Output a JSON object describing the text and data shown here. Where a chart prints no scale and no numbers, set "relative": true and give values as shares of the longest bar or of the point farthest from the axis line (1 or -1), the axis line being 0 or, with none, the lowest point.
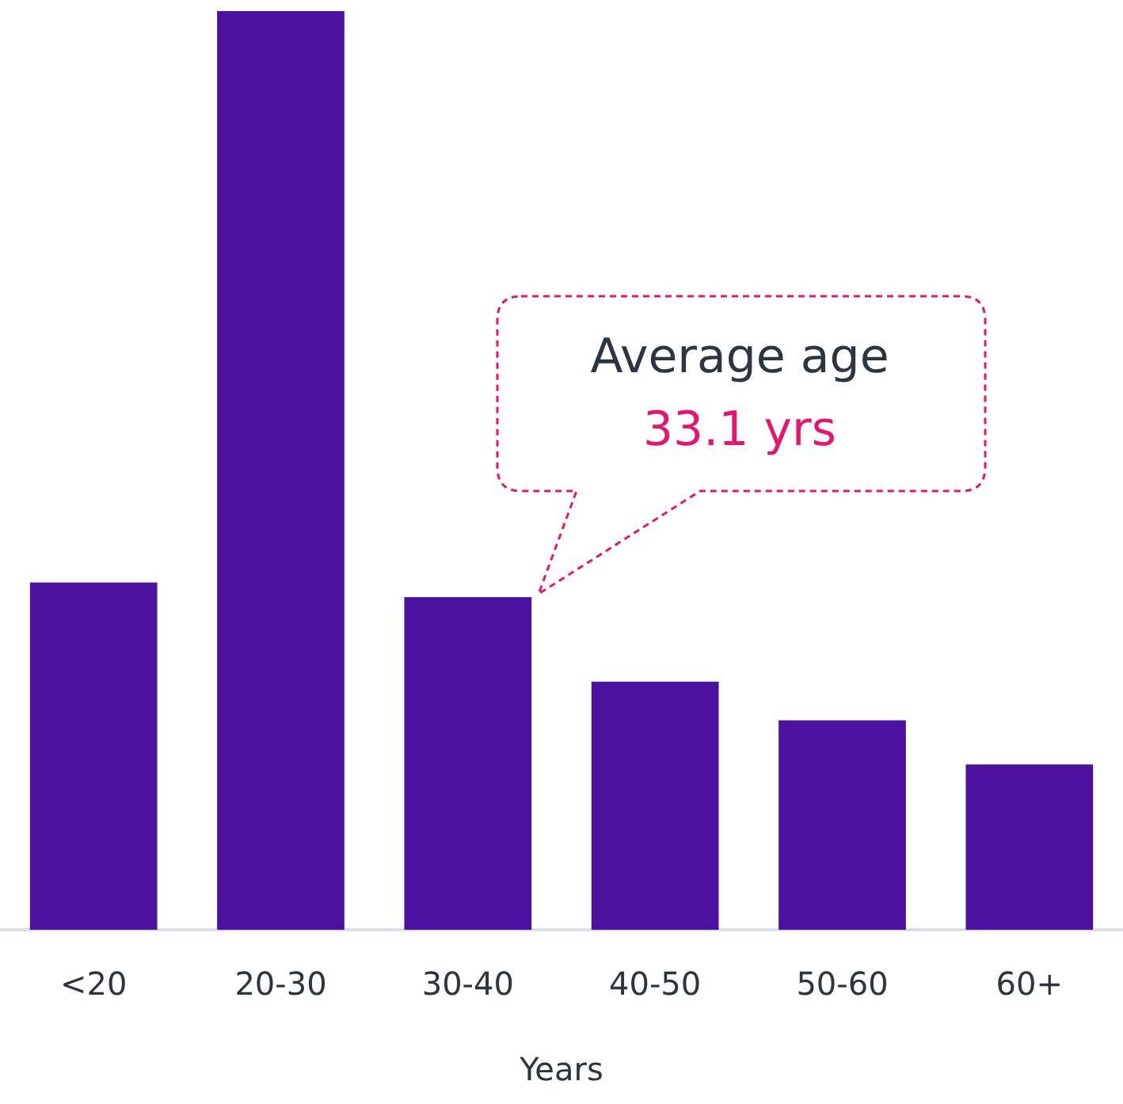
{
  "chart_data": {
    "type": "bar",
    "relative": true,
    "xlabel": "Years",
    "categories": [
      "<20",
      "20-30",
      "30-40",
      "40-50",
      "50-60",
      "60+"
    ],
    "values": [
      0.378,
      1,
      0.362,
      0.27,
      0.228,
      0.18
    ],
    "color": "#4b12a0",
    "annotations": [
      "Average age",
      "33.1 yrs"
    ]
  }
}
